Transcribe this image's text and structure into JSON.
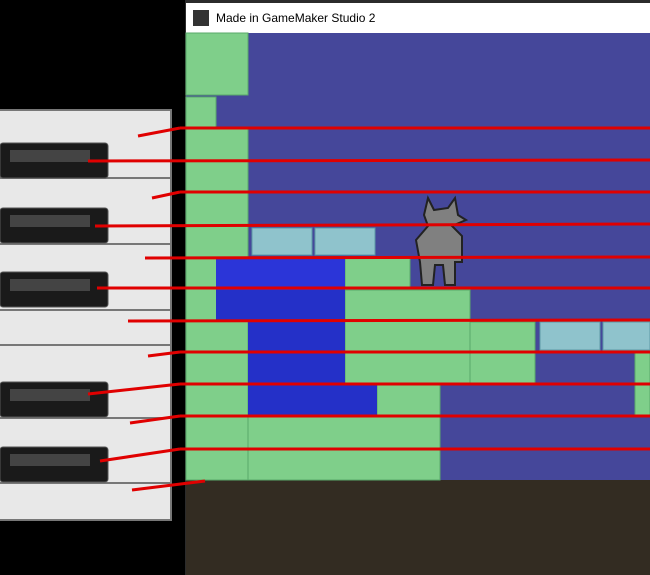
{
  "window": {
    "title": "Made in GameMaker Studio 2"
  }
}
